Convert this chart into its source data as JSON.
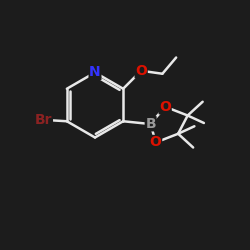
{
  "bg_color": "#1c1c1c",
  "bond_color": "#e8e8e8",
  "N_color": "#3333ff",
  "O_color": "#dd1100",
  "Br_color": "#8b2222",
  "B_color": "#999999",
  "line_width": 1.8,
  "font_size_atom": 9,
  "figsize": [
    2.5,
    2.5
  ],
  "dpi": 100,
  "xlim": [
    0,
    10
  ],
  "ylim": [
    0,
    10
  ]
}
